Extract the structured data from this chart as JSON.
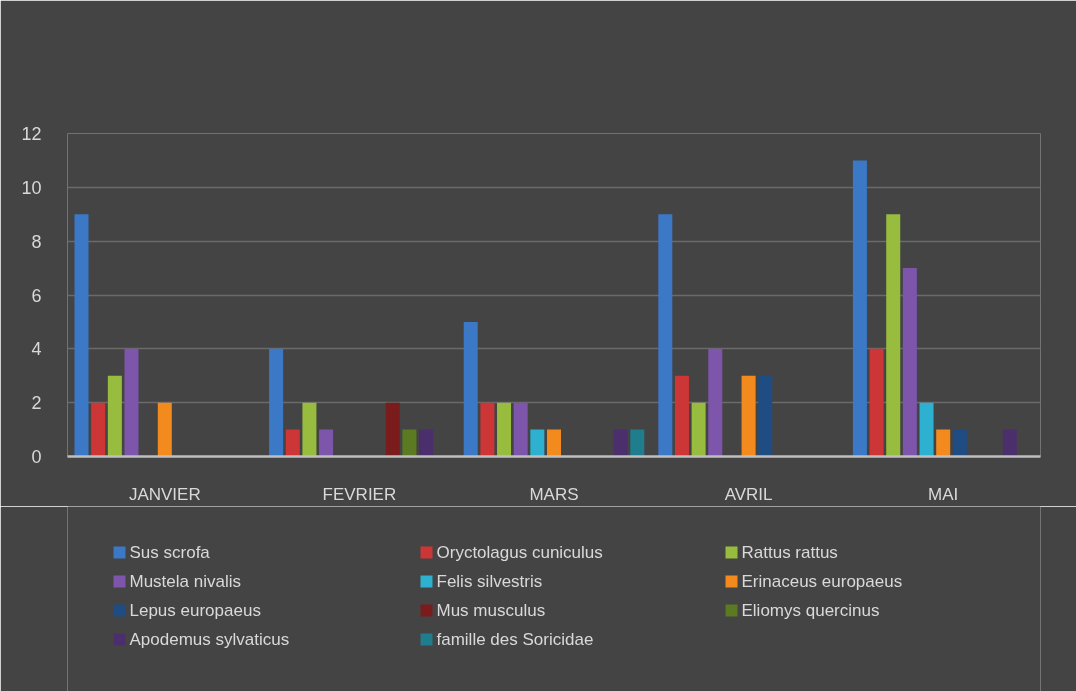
{
  "chart_data": {
    "type": "bar",
    "categories": [
      "JANVIER",
      "FEVRIER",
      "MARS",
      "AVRIL",
      "MAI"
    ],
    "series": [
      {
        "name": "Sus scrofa",
        "color": "#3b78c6",
        "values": [
          9,
          4,
          5,
          9,
          11
        ]
      },
      {
        "name": "Oryctolagus cuniculus",
        "color": "#cc3636",
        "values": [
          2,
          1,
          2,
          3,
          4
        ]
      },
      {
        "name": "Rattus rattus",
        "color": "#98bd3e",
        "values": [
          3,
          2,
          2,
          2,
          9
        ]
      },
      {
        "name": "Mustela nivalis",
        "color": "#7d55aa",
        "values": [
          4,
          1,
          2,
          4,
          7
        ]
      },
      {
        "name": "Felis silvestris",
        "color": "#2eb0d0",
        "values": [
          null,
          null,
          1,
          null,
          2
        ]
      },
      {
        "name": "Erinaceus europaeus",
        "color": "#f28a1e",
        "values": [
          2,
          null,
          1,
          3,
          1
        ]
      },
      {
        "name": "Lepus europaeus",
        "color": "#1f4c82",
        "values": [
          null,
          null,
          null,
          3,
          1
        ]
      },
      {
        "name": "Mus musculus",
        "color": "#7a1c1c",
        "values": [
          null,
          2,
          null,
          null,
          null
        ]
      },
      {
        "name": "Eliomys quercinus",
        "color": "#5c7a22",
        "values": [
          null,
          1,
          null,
          null,
          null
        ]
      },
      {
        "name": "Apodemus sylvaticus",
        "color": "#4b2f6c",
        "values": [
          null,
          1,
          1,
          null,
          1
        ]
      },
      {
        "name": "famille des Soricidae",
        "color": "#1f7d8e",
        "values": [
          null,
          null,
          1,
          null,
          null
        ]
      }
    ],
    "ylim": [
      0,
      12
    ],
    "yticks": [
      0,
      2,
      4,
      6,
      8,
      10,
      12
    ],
    "grid": "y",
    "legend": "bottom"
  }
}
